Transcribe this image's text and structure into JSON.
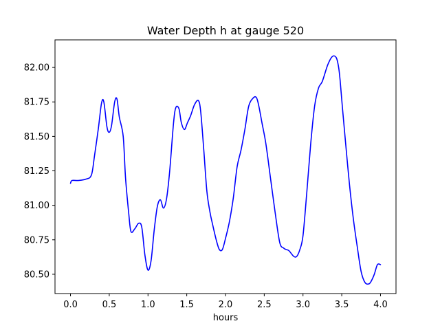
{
  "chart_data": {
    "type": "line",
    "title": "Water Depth h at gauge 520",
    "xlabel": "hours",
    "ylabel": "",
    "xlim": [
      -0.2,
      4.2
    ],
    "ylim": [
      80.36,
      82.2
    ],
    "xticks": [
      0.0,
      0.5,
      1.0,
      1.5,
      2.0,
      2.5,
      3.0,
      3.5,
      4.0
    ],
    "xtick_labels": [
      "0.0",
      "0.5",
      "1.0",
      "1.5",
      "2.0",
      "2.5",
      "3.0",
      "3.5",
      "4.0"
    ],
    "yticks": [
      80.5,
      80.75,
      81.0,
      81.25,
      81.5,
      81.75,
      82.0
    ],
    "ytick_labels": [
      "80.50",
      "80.75",
      "81.00",
      "81.25",
      "81.50",
      "81.75",
      "82.00"
    ],
    "grid": false,
    "line_color": "#0000ff",
    "series": [
      {
        "x": [
          0.0,
          0.02,
          0.1,
          0.2,
          0.27,
          0.31,
          0.36,
          0.4,
          0.43,
          0.47,
          0.5,
          0.53,
          0.57,
          0.6,
          0.63,
          0.68,
          0.71,
          0.75,
          0.78,
          0.83,
          0.88,
          0.92,
          0.96,
          1.0,
          1.04,
          1.08,
          1.12,
          1.16,
          1.2,
          1.24,
          1.28,
          1.33,
          1.36,
          1.4,
          1.43,
          1.47,
          1.51,
          1.55,
          1.6,
          1.65,
          1.68,
          1.72,
          1.76,
          1.8,
          1.83,
          1.88,
          1.92,
          1.96,
          2.0,
          2.05,
          2.1,
          2.15,
          2.2,
          2.25,
          2.3,
          2.36,
          2.4,
          2.43,
          2.47,
          2.52,
          2.58,
          2.64,
          2.7,
          2.75,
          2.78,
          2.82,
          2.88,
          2.92,
          2.96,
          3.0,
          3.05,
          3.1,
          3.15,
          3.2,
          3.25,
          3.32,
          3.38,
          3.43,
          3.46,
          3.48,
          3.51,
          3.55,
          3.6,
          3.65,
          3.7,
          3.75,
          3.8,
          3.85,
          3.88,
          3.92,
          3.96,
          4.0
        ],
        "y": [
          81.16,
          81.18,
          81.18,
          81.19,
          81.22,
          81.36,
          81.56,
          81.74,
          81.75,
          81.57,
          81.53,
          81.58,
          81.75,
          81.77,
          81.64,
          81.5,
          81.2,
          80.95,
          80.81,
          80.83,
          80.87,
          80.84,
          80.64,
          80.53,
          80.6,
          80.82,
          80.99,
          81.04,
          80.98,
          81.05,
          81.25,
          81.6,
          81.71,
          81.7,
          81.6,
          81.55,
          81.6,
          81.65,
          81.73,
          81.76,
          81.68,
          81.4,
          81.1,
          80.95,
          80.87,
          80.75,
          80.68,
          80.68,
          80.76,
          80.88,
          81.05,
          81.28,
          81.4,
          81.55,
          81.72,
          81.78,
          81.78,
          81.72,
          81.6,
          81.45,
          81.2,
          80.95,
          80.73,
          80.69,
          80.68,
          80.67,
          80.63,
          80.63,
          80.68,
          80.78,
          81.1,
          81.45,
          81.72,
          81.85,
          81.9,
          82.02,
          82.08,
          82.07,
          82.0,
          81.9,
          81.7,
          81.45,
          81.15,
          80.9,
          80.7,
          80.52,
          80.44,
          80.43,
          80.45,
          80.5,
          80.57,
          80.57
        ]
      }
    ]
  }
}
